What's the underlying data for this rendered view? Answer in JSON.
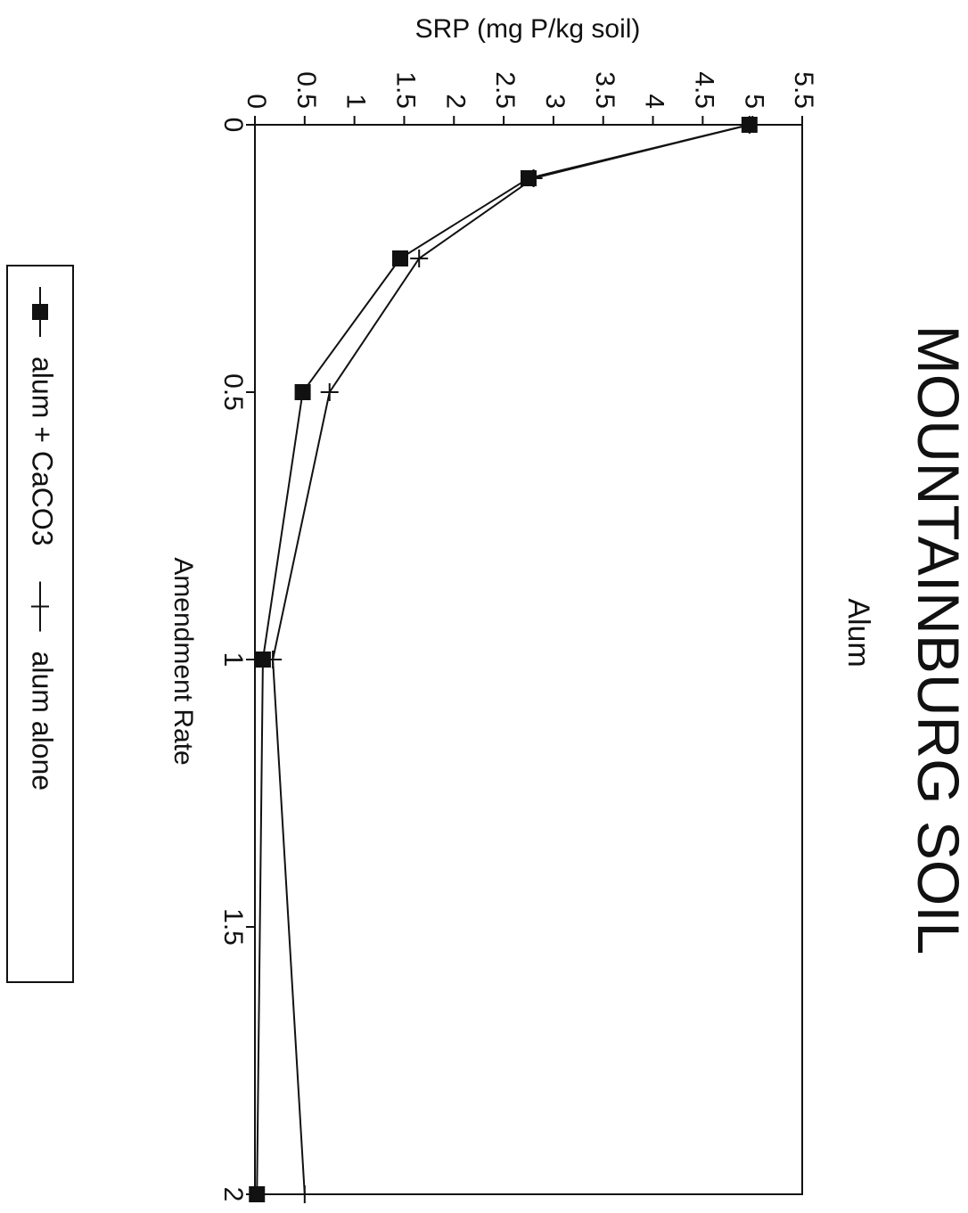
{
  "chart_data": {
    "type": "line",
    "title": "MOUNTAINBURG SOIL",
    "subtitle": "Alum",
    "xlabel": "Amendment Rate",
    "ylabel": "SRP (mg P/kg soil)",
    "xlim": [
      0,
      2
    ],
    "ylim": [
      0,
      5.5
    ],
    "x_ticks": [
      "0",
      "0.5",
      "1",
      "1.5",
      "2"
    ],
    "y_ticks": [
      "0",
      "0.5",
      "1",
      "1.5",
      "2",
      "2.5",
      "3",
      "3.5",
      "4",
      "4.5",
      "5",
      "5.5"
    ],
    "orientation": "rotated-90-clockwise",
    "grid": false,
    "legend_position": "bottom",
    "series": [
      {
        "name": "alum + CaCO3",
        "marker": "square",
        "x": [
          0,
          0.1,
          0.25,
          0.5,
          1,
          2
        ],
        "y": [
          4.97,
          2.75,
          1.46,
          0.48,
          0.08,
          0.02
        ]
      },
      {
        "name": "alum alone",
        "marker": "plus",
        "x": [
          0,
          0.1,
          0.25,
          0.5,
          1,
          2
        ],
        "y": [
          4.97,
          2.8,
          1.65,
          0.75,
          0.18,
          0.5
        ]
      }
    ]
  }
}
